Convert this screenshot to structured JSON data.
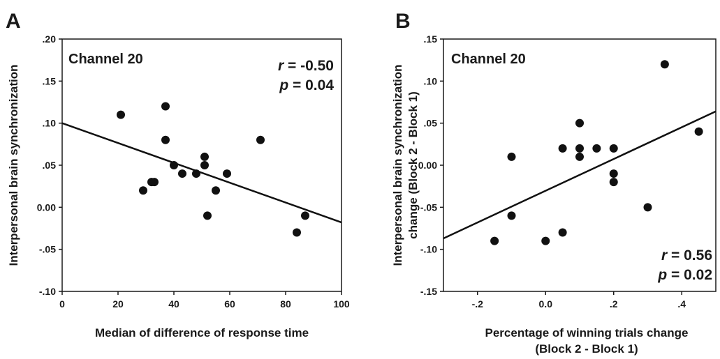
{
  "chart_data": [
    {
      "type": "scatter",
      "panel_label": "A",
      "corner_label": "Channel 20",
      "xlabel": "Median of difference of response time",
      "ylabel": "Interpersonal brain synchronization",
      "xlim": [
        0,
        100
      ],
      "ylim": [
        -0.1,
        0.2
      ],
      "xticks": [
        {
          "v": 0,
          "label": "0"
        },
        {
          "v": 20,
          "label": "20"
        },
        {
          "v": 40,
          "label": "40"
        },
        {
          "v": 60,
          "label": "60"
        },
        {
          "v": 80,
          "label": "80"
        },
        {
          "v": 100,
          "label": "100"
        }
      ],
      "yticks": [
        {
          "v": -0.1,
          "label": "-.10"
        },
        {
          "v": -0.05,
          "label": "-.05"
        },
        {
          "v": 0.0,
          "label": "0.00"
        },
        {
          "v": 0.05,
          "label": ".05"
        },
        {
          "v": 0.1,
          "label": ".10"
        },
        {
          "v": 0.15,
          "label": ".15"
        },
        {
          "v": 0.2,
          "label": ".20"
        }
      ],
      "points": [
        {
          "x": 21,
          "y": 0.11
        },
        {
          "x": 29,
          "y": 0.02
        },
        {
          "x": 32,
          "y": 0.03
        },
        {
          "x": 33,
          "y": 0.03
        },
        {
          "x": 37,
          "y": 0.12
        },
        {
          "x": 37,
          "y": 0.08
        },
        {
          "x": 40,
          "y": 0.05
        },
        {
          "x": 43,
          "y": 0.04
        },
        {
          "x": 48,
          "y": 0.04
        },
        {
          "x": 51,
          "y": 0.06
        },
        {
          "x": 51,
          "y": 0.05
        },
        {
          "x": 52,
          "y": -0.01
        },
        {
          "x": 55,
          "y": 0.02
        },
        {
          "x": 59,
          "y": 0.04
        },
        {
          "x": 71,
          "y": 0.08
        },
        {
          "x": 84,
          "y": -0.03
        },
        {
          "x": 87,
          "y": -0.01
        }
      ],
      "fit_line": {
        "x": [
          0,
          100
        ],
        "y": [
          0.1,
          -0.018
        ]
      },
      "stat_r_sym": "r",
      "stat_r_val": " = -0.50",
      "stat_p_sym": "p",
      "stat_p_val": " = 0.04"
    },
    {
      "type": "scatter",
      "panel_label": "B",
      "corner_label": "Channel 20",
      "xlabel_line1": "Percentage of winning trials change",
      "xlabel_line2": "(Block 2 - Block 1)",
      "ylabel_line1": "Interpersonal brain synchronization",
      "ylabel_line2": "change (Block 2 - Block 1)",
      "xlim": [
        -0.3,
        0.5
      ],
      "ylim": [
        -0.15,
        0.15
      ],
      "xticks": [
        {
          "v": -0.2,
          "label": "-.2"
        },
        {
          "v": 0.0,
          "label": "0.0"
        },
        {
          "v": 0.2,
          "label": ".2"
        },
        {
          "v": 0.4,
          "label": ".4"
        }
      ],
      "yticks": [
        {
          "v": -0.15,
          "label": "-.15"
        },
        {
          "v": -0.1,
          "label": "-.10"
        },
        {
          "v": -0.05,
          "label": "-.05"
        },
        {
          "v": 0.0,
          "label": "0.00"
        },
        {
          "v": 0.05,
          "label": ".05"
        },
        {
          "v": 0.1,
          "label": ".10"
        },
        {
          "v": 0.15,
          "label": ".15"
        }
      ],
      "points": [
        {
          "x": -0.15,
          "y": -0.09
        },
        {
          "x": -0.1,
          "y": 0.01
        },
        {
          "x": -0.1,
          "y": -0.06
        },
        {
          "x": 0.0,
          "y": -0.09
        },
        {
          "x": 0.05,
          "y": 0.02
        },
        {
          "x": 0.05,
          "y": -0.08
        },
        {
          "x": 0.1,
          "y": 0.05
        },
        {
          "x": 0.1,
          "y": 0.02
        },
        {
          "x": 0.1,
          "y": 0.01
        },
        {
          "x": 0.15,
          "y": 0.02
        },
        {
          "x": 0.2,
          "y": 0.02
        },
        {
          "x": 0.2,
          "y": -0.01
        },
        {
          "x": 0.2,
          "y": -0.02
        },
        {
          "x": 0.3,
          "y": -0.05
        },
        {
          "x": 0.35,
          "y": 0.12
        },
        {
          "x": 0.45,
          "y": 0.04
        }
      ],
      "fit_line": {
        "x": [
          -0.3,
          0.5
        ],
        "y": [
          -0.087,
          0.064
        ]
      },
      "stat_r_sym": "r",
      "stat_r_val": " = 0.56",
      "stat_p_sym": "p",
      "stat_p_val": " = 0.02"
    }
  ]
}
